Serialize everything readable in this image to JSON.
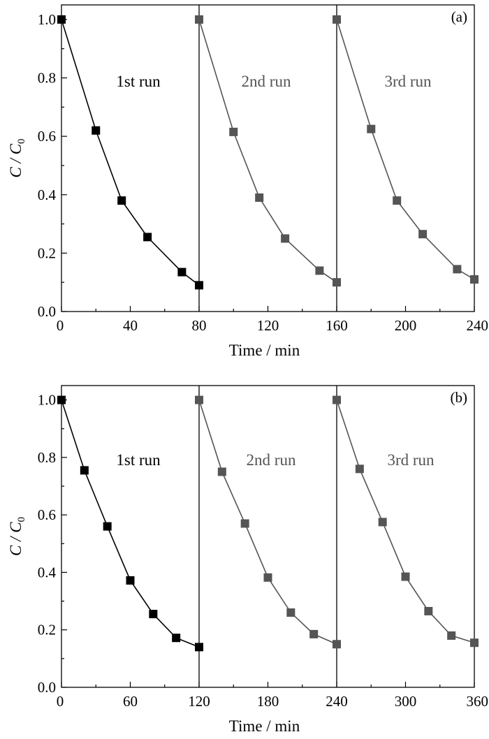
{
  "chart_data": [
    {
      "type": "line",
      "panel": "(a)",
      "xlabel": "Time / min",
      "ylabel": "C / C0",
      "ylabel_main": "C / C",
      "ylabel_sub": "0",
      "xlim": [
        0,
        240
      ],
      "ylim": [
        0,
        1.05
      ],
      "xticks": [
        0,
        40,
        80,
        120,
        160,
        200,
        240
      ],
      "yticks": [
        0.0,
        0.2,
        0.4,
        0.6,
        0.8,
        1.0
      ],
      "ytick_labels": [
        "0.0",
        "0.2",
        "0.4",
        "0.6",
        "0.8",
        "1.0"
      ],
      "grid": false,
      "run_boundaries": [
        80,
        160
      ],
      "series": [
        {
          "name": "1st run",
          "color": "#000000",
          "x": [
            0,
            20,
            35,
            50,
            70,
            80
          ],
          "y": [
            1.0,
            0.62,
            0.38,
            0.255,
            0.135,
            0.09
          ]
        },
        {
          "name": "2nd run",
          "color": "#555555",
          "x": [
            80,
            100,
            115,
            130,
            150,
            160
          ],
          "y": [
            1.0,
            0.615,
            0.39,
            0.25,
            0.14,
            0.1
          ]
        },
        {
          "name": "3rd run",
          "color": "#555555",
          "x": [
            160,
            180,
            195,
            210,
            230,
            240
          ],
          "y": [
            1.0,
            0.625,
            0.38,
            0.265,
            0.145,
            0.11
          ]
        }
      ]
    },
    {
      "type": "line",
      "panel": "(b)",
      "xlabel": "Time / min",
      "ylabel": "C / C0",
      "ylabel_main": "C / C",
      "ylabel_sub": "0",
      "xlim": [
        0,
        360
      ],
      "ylim": [
        0,
        1.05
      ],
      "xticks": [
        0,
        60,
        120,
        180,
        240,
        300,
        360
      ],
      "yticks": [
        0.0,
        0.2,
        0.4,
        0.6,
        0.8,
        1.0
      ],
      "ytick_labels": [
        "0.0",
        "0.2",
        "0.4",
        "0.6",
        "0.8",
        "1.0"
      ],
      "grid": false,
      "run_boundaries": [
        120,
        240
      ],
      "series": [
        {
          "name": "1st run",
          "color": "#000000",
          "x": [
            0,
            20,
            40,
            60,
            80,
            100,
            120
          ],
          "y": [
            1.0,
            0.755,
            0.56,
            0.372,
            0.255,
            0.172,
            0.14
          ]
        },
        {
          "name": "2nd run",
          "color": "#555555",
          "x": [
            120,
            140,
            160,
            180,
            200,
            220,
            240
          ],
          "y": [
            1.0,
            0.75,
            0.57,
            0.382,
            0.26,
            0.185,
            0.15
          ]
        },
        {
          "name": "3rd run",
          "color": "#555555",
          "x": [
            240,
            260,
            280,
            300,
            320,
            340,
            360
          ],
          "y": [
            1.0,
            0.76,
            0.575,
            0.385,
            0.265,
            0.18,
            0.155
          ]
        }
      ]
    }
  ]
}
